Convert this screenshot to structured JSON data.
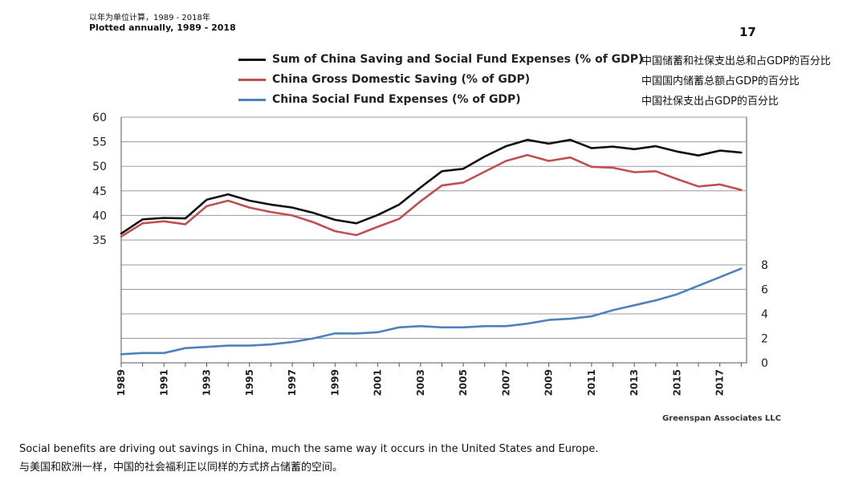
{
  "header": {
    "note_cn": "以年为单位计算，1989 - 2018年",
    "note_en": "Plotted annually, 1989 - 2018",
    "page_number": "17"
  },
  "legend": [
    {
      "label": "Sum of China Saving and Social Fund Expenses (% of GDP)",
      "label_cn": "中国储蓄和社保支出总和占GDP的百分比",
      "color": "#111111"
    },
    {
      "label": "China Gross Domestic Saving (% of GDP)",
      "label_cn": "中国国内储蓄总额占GDP的百分比",
      "color": "#c0504d"
    },
    {
      "label": "China Social Fund Expenses (% of GDP)",
      "label_cn": "中国社保支出占GDP的百分比",
      "color": "#4f81bd"
    }
  ],
  "credit": "Greenspan Associates LLC",
  "caption": {
    "en": "Social benefits are driving out savings in China, much the same way it occurs in the United States and Europe.",
    "cn": "与美国和欧洲一样，中国的社会福利正以同样的方式挤占储蓄的空间。"
  },
  "chart_data": {
    "type": "line",
    "x": [
      1989,
      1990,
      1991,
      1992,
      1993,
      1994,
      1995,
      1996,
      1997,
      1998,
      1999,
      2000,
      2001,
      2002,
      2003,
      2004,
      2005,
      2006,
      2007,
      2008,
      2009,
      2010,
      2011,
      2012,
      2013,
      2014,
      2015,
      2016,
      2017,
      2018
    ],
    "x_tick_labels": [
      "1989",
      "1991",
      "1993",
      "1995",
      "1997",
      "1999",
      "2001",
      "2003",
      "2005",
      "2007",
      "2009",
      "2011",
      "2013",
      "2015",
      "2017"
    ],
    "left_axis": {
      "ticks": [
        35,
        40,
        45,
        50,
        55,
        60
      ],
      "ylim": [
        35,
        60
      ]
    },
    "right_axis": {
      "ticks": [
        0,
        2,
        4,
        6,
        8
      ],
      "ylim": [
        0,
        8
      ]
    },
    "grid": true,
    "series": [
      {
        "name": "Sum of China Saving and Social Fund Expenses (% of GDP)",
        "axis": "left",
        "color": "#111111",
        "values": [
          36.3,
          39.2,
          39.5,
          39.4,
          43.2,
          44.3,
          43.0,
          42.2,
          41.6,
          40.5,
          39.1,
          38.4,
          40.1,
          42.2,
          45.7,
          49.0,
          49.5,
          52.0,
          54.1,
          55.4,
          54.6,
          55.4,
          53.7,
          54.0,
          53.5,
          54.1,
          53.0,
          52.2,
          53.2,
          52.8
        ]
      },
      {
        "name": "China Gross Domestic Saving (% of GDP)",
        "axis": "left",
        "color": "#c0504d",
        "values": [
          35.7,
          38.4,
          38.8,
          38.2,
          41.9,
          43.0,
          41.6,
          40.7,
          40.0,
          38.6,
          36.8,
          36.0,
          37.7,
          39.3,
          42.9,
          46.1,
          46.7,
          48.9,
          51.1,
          52.3,
          51.1,
          51.8,
          49.9,
          49.7,
          48.8,
          49.0,
          47.4,
          45.9,
          46.3,
          45.2
        ]
      },
      {
        "name": "China Social Fund Expenses (% of GDP)",
        "axis": "right",
        "color": "#4f81bd",
        "values": [
          0.7,
          0.8,
          0.8,
          1.2,
          1.3,
          1.4,
          1.4,
          1.5,
          1.7,
          2.0,
          2.4,
          2.4,
          2.5,
          2.9,
          3.0,
          2.9,
          2.9,
          3.0,
          3.0,
          3.2,
          3.5,
          3.6,
          3.8,
          4.3,
          4.7,
          5.1,
          5.6,
          6.3,
          7.0,
          7.7
        ]
      }
    ]
  }
}
